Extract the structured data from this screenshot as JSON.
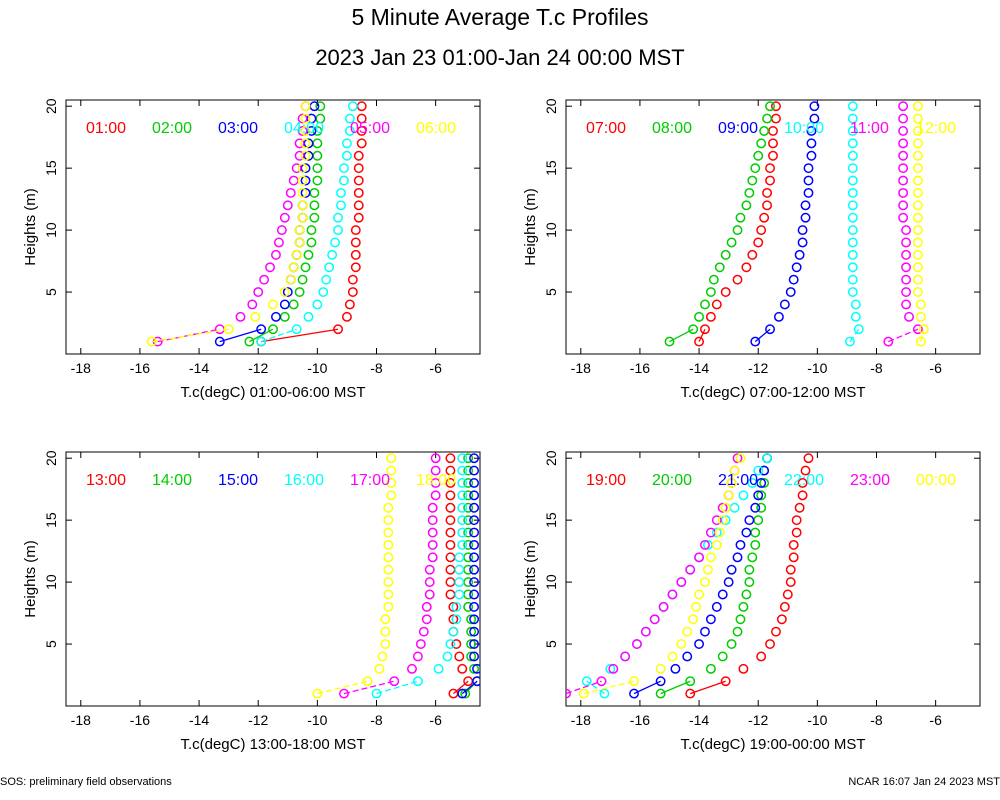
{
  "page": {
    "title": "5 Minute Average T.c Profiles",
    "subtitle": "2023 Jan 23 01:00-Jan 24 00:00 MST",
    "footer_left": "SOS: preliminary field observations",
    "footer_right": "NCAR 16:07 Jan 24 2023 MST"
  },
  "colors": [
    "#ff0000",
    "#00cc00",
    "#0000ff",
    "#00ffff",
    "#ff00ff",
    "#ffff00"
  ],
  "chart_data": [
    {
      "type": "scatter",
      "xlabel": "T.c(degC) 01:00-06:00 MST",
      "ylabel": "Heights (m)",
      "xlim": [
        -18.5,
        -4.5
      ],
      "ylim": [
        0,
        20.5
      ],
      "xticks": [
        -18,
        -16,
        -14,
        -12,
        -10,
        -8,
        -6
      ],
      "yticks": [
        5,
        10,
        15,
        20
      ],
      "grid": false,
      "heights": [
        1,
        2,
        3,
        4,
        5,
        6,
        7,
        8,
        9,
        10,
        11,
        12,
        13,
        14,
        15,
        16,
        17,
        18,
        19,
        20
      ],
      "series": [
        {
          "name": "01:00",
          "values": [
            -11.9,
            -9.3,
            -9.0,
            -8.9,
            -8.8,
            -8.8,
            -8.7,
            -8.7,
            -8.7,
            -8.7,
            -8.6,
            -8.6,
            -8.6,
            -8.6,
            -8.6,
            -8.6,
            -8.5,
            -8.5,
            -8.5,
            -8.5
          ]
        },
        {
          "name": "02:00",
          "values": [
            -12.3,
            -11.5,
            -11.1,
            -10.8,
            -10.6,
            -10.5,
            -10.4,
            -10.3,
            -10.2,
            -10.2,
            -10.1,
            -10.1,
            -10.1,
            -10.0,
            -10.0,
            -10.0,
            -10.0,
            -10.0,
            -9.9,
            -9.9
          ]
        },
        {
          "name": "03:00",
          "values": [
            -13.3,
            -11.9,
            -11.4,
            -11.1,
            -11.0,
            -10.9,
            -10.8,
            -10.7,
            -10.6,
            -10.6,
            -10.5,
            -10.5,
            -10.4,
            -10.4,
            -10.4,
            -10.3,
            -10.3,
            -10.2,
            -10.2,
            -10.1
          ]
        },
        {
          "name": "04:00",
          "values": [
            -11.9,
            -10.7,
            -10.3,
            -10.0,
            -9.8,
            -9.7,
            -9.6,
            -9.5,
            -9.4,
            -9.3,
            -9.3,
            -9.2,
            -9.2,
            -9.1,
            -9.1,
            -9.0,
            -9.0,
            -8.9,
            -8.9,
            -8.8
          ]
        },
        {
          "name": "05:00",
          "values": [
            -15.4,
            -13.3,
            -12.6,
            -12.2,
            -12.0,
            -11.8,
            -11.6,
            -11.4,
            -11.3,
            -11.2,
            -11.1,
            -11.0,
            -10.9,
            -10.8,
            -10.7,
            -10.6,
            -10.6,
            -10.5,
            -10.5,
            -10.4
          ]
        },
        {
          "name": "06:00",
          "values": [
            -15.6,
            -13.0,
            -12.1,
            -11.5,
            -11.1,
            -10.9,
            -10.8,
            -10.7,
            -10.6,
            -10.6,
            -10.5,
            -10.5,
            -10.5,
            -10.5,
            -10.5,
            -10.4,
            -10.4,
            -10.4,
            -10.4,
            -10.4
          ]
        }
      ]
    },
    {
      "type": "scatter",
      "xlabel": "T.c(degC) 07:00-12:00 MST",
      "ylabel": "Heights (m)",
      "xlim": [
        -18.5,
        -4.5
      ],
      "ylim": [
        0,
        20.5
      ],
      "xticks": [
        -18,
        -16,
        -14,
        -12,
        -10,
        -8,
        -6
      ],
      "yticks": [
        5,
        10,
        15,
        20
      ],
      "grid": false,
      "heights": [
        1,
        2,
        3,
        4,
        5,
        6,
        7,
        8,
        9,
        10,
        11,
        12,
        13,
        14,
        15,
        16,
        17,
        18,
        19,
        20
      ],
      "series": [
        {
          "name": "07:00",
          "values": [
            -14.0,
            -13.8,
            -13.6,
            -13.4,
            -13.1,
            -12.7,
            -12.4,
            -12.2,
            -12.0,
            -11.9,
            -11.8,
            -11.7,
            -11.7,
            -11.6,
            -11.6,
            -11.5,
            -11.5,
            -11.5,
            -11.4,
            -11.4
          ]
        },
        {
          "name": "08:00",
          "values": [
            -15.0,
            -14.2,
            -14.0,
            -13.8,
            -13.6,
            -13.5,
            -13.3,
            -13.1,
            -12.9,
            -12.7,
            -12.6,
            -12.4,
            -12.3,
            -12.2,
            -12.1,
            -12.0,
            -11.9,
            -11.8,
            -11.7,
            -11.6
          ]
        },
        {
          "name": "09:00",
          "values": [
            -12.1,
            -11.6,
            -11.3,
            -11.1,
            -10.9,
            -10.8,
            -10.7,
            -10.6,
            -10.5,
            -10.5,
            -10.4,
            -10.4,
            -10.3,
            -10.3,
            -10.3,
            -10.2,
            -10.2,
            -10.2,
            -10.1,
            -10.1
          ]
        },
        {
          "name": "10:00",
          "values": [
            -8.9,
            -8.6,
            -8.7,
            -8.7,
            -8.8,
            -8.8,
            -8.8,
            -8.8,
            -8.8,
            -8.8,
            -8.8,
            -8.8,
            -8.8,
            -8.8,
            -8.8,
            -8.8,
            -8.8,
            -8.8,
            -8.8,
            -8.8
          ]
        },
        {
          "name": "11:00",
          "values": [
            -7.6,
            -6.6,
            -6.9,
            -7.0,
            -7.0,
            -7.0,
            -7.0,
            -7.0,
            -7.0,
            -7.0,
            -7.1,
            -7.1,
            -7.1,
            -7.1,
            -7.1,
            -7.1,
            -7.1,
            -7.1,
            -7.1,
            -7.1
          ]
        },
        {
          "name": "12:00",
          "values": [
            -6.5,
            -6.4,
            -6.5,
            -6.5,
            -6.6,
            -6.6,
            -6.6,
            -6.6,
            -6.6,
            -6.6,
            -6.6,
            -6.6,
            -6.6,
            -6.6,
            -6.6,
            -6.6,
            -6.6,
            -6.6,
            -6.6,
            -6.6
          ]
        }
      ]
    },
    {
      "type": "scatter",
      "xlabel": "T.c(degC) 13:00-18:00 MST",
      "ylabel": "Heights (m)",
      "xlim": [
        -18.5,
        -4.5
      ],
      "ylim": [
        0,
        20.5
      ],
      "xticks": [
        -18,
        -16,
        -14,
        -12,
        -10,
        -8,
        -6
      ],
      "yticks": [
        5,
        10,
        15,
        20
      ],
      "grid": false,
      "heights": [
        1,
        2,
        3,
        4,
        5,
        6,
        7,
        8,
        9,
        10,
        11,
        12,
        13,
        14,
        15,
        16,
        17,
        18,
        19,
        20
      ],
      "series": [
        {
          "name": "13:00",
          "values": [
            -5.4,
            -4.9,
            -5.1,
            -5.2,
            -5.3,
            -5.4,
            -5.4,
            -5.4,
            -5.5,
            -5.5,
            -5.5,
            -5.5,
            -5.5,
            -5.5,
            -5.5,
            -5.5,
            -5.5,
            -5.5,
            -5.5,
            -5.5
          ]
        },
        {
          "name": "14:00",
          "values": [
            -5.0,
            -4.6,
            -4.7,
            -4.8,
            -4.8,
            -4.8,
            -4.8,
            -4.9,
            -4.9,
            -4.9,
            -4.9,
            -4.9,
            -4.9,
            -4.9,
            -4.9,
            -4.9,
            -4.9,
            -4.9,
            -4.9,
            -4.9
          ]
        },
        {
          "name": "15:00",
          "values": [
            -5.1,
            -4.6,
            -4.6,
            -4.7,
            -4.7,
            -4.7,
            -4.7,
            -4.7,
            -4.7,
            -4.7,
            -4.7,
            -4.7,
            -4.7,
            -4.7,
            -4.7,
            -4.7,
            -4.7,
            -4.7,
            -4.7,
            -4.7
          ]
        },
        {
          "name": "16:00",
          "values": [
            -8.0,
            -6.6,
            -5.9,
            -5.6,
            -5.5,
            -5.4,
            -5.3,
            -5.3,
            -5.2,
            -5.2,
            -5.2,
            -5.2,
            -5.1,
            -5.1,
            -5.1,
            -5.1,
            -5.1,
            -5.1,
            -5.1,
            -5.1
          ]
        },
        {
          "name": "17:00",
          "values": [
            -9.1,
            -7.4,
            -6.8,
            -6.6,
            -6.5,
            -6.4,
            -6.3,
            -6.3,
            -6.2,
            -6.2,
            -6.2,
            -6.1,
            -6.1,
            -6.1,
            -6.1,
            -6.1,
            -6.0,
            -6.0,
            -6.0,
            -6.0
          ]
        },
        {
          "name": "18:00",
          "values": [
            -10.0,
            -8.3,
            -7.9,
            -7.8,
            -7.7,
            -7.7,
            -7.7,
            -7.6,
            -7.6,
            -7.6,
            -7.6,
            -7.6,
            -7.6,
            -7.6,
            -7.6,
            -7.6,
            -7.5,
            -7.5,
            -7.5,
            -7.5
          ]
        }
      ]
    },
    {
      "type": "scatter",
      "xlabel": "T.c(degC) 19:00-00:00 MST",
      "ylabel": "Heights (m)",
      "xlim": [
        -18.5,
        -4.5
      ],
      "ylim": [
        0,
        20.5
      ],
      "xticks": [
        -18,
        -16,
        -14,
        -12,
        -10,
        -8,
        -6
      ],
      "yticks": [
        5,
        10,
        15,
        20
      ],
      "grid": false,
      "heights": [
        1,
        2,
        3,
        4,
        5,
        6,
        7,
        8,
        9,
        10,
        11,
        12,
        13,
        14,
        15,
        16,
        17,
        18,
        19,
        20
      ],
      "series": [
        {
          "name": "19:00",
          "values": [
            -14.3,
            -13.1,
            -12.5,
            -11.9,
            -11.6,
            -11.4,
            -11.2,
            -11.1,
            -11.0,
            -10.9,
            -10.9,
            -10.8,
            -10.8,
            -10.7,
            -10.7,
            -10.6,
            -10.5,
            -10.5,
            -10.4,
            -10.3
          ]
        },
        {
          "name": "20:00",
          "values": [
            -15.3,
            -14.3,
            -13.6,
            -13.2,
            -12.9,
            -12.7,
            -12.6,
            -12.5,
            -12.4,
            -12.3,
            -12.3,
            -12.2,
            -12.1,
            -12.1,
            -12.0,
            -11.9,
            -11.9,
            -11.8,
            -11.8,
            -11.7
          ]
        },
        {
          "name": "21:00",
          "values": [
            -16.2,
            -15.3,
            -14.8,
            -14.4,
            -14.0,
            -13.8,
            -13.6,
            -13.4,
            -13.2,
            -13.0,
            -12.9,
            -12.7,
            -12.6,
            -12.4,
            -12.3,
            -12.1,
            -12.0,
            -11.9,
            -11.8,
            -11.7
          ]
        },
        {
          "name": "22:00",
          "values": [
            -17.2,
            -17.8,
            -17.0,
            -16.5,
            -16.1,
            -15.8,
            -15.5,
            -15.2,
            -14.9,
            -14.6,
            -14.3,
            -14.0,
            -13.7,
            -13.4,
            -13.1,
            -12.8,
            -12.5,
            -12.2,
            -12.0,
            -11.7
          ]
        },
        {
          "name": "23:00",
          "values": [
            -18.5,
            -17.3,
            -16.9,
            -16.5,
            -16.1,
            -15.8,
            -15.5,
            -15.2,
            -14.9,
            -14.6,
            -14.3,
            -14.0,
            -13.8,
            -13.6,
            -13.4,
            -13.2,
            -13.0,
            -12.9,
            -12.8,
            -12.7
          ]
        },
        {
          "name": "00:00",
          "values": [
            -17.9,
            -16.2,
            -15.3,
            -14.9,
            -14.6,
            -14.4,
            -14.2,
            -14.1,
            -14.0,
            -13.8,
            -13.7,
            -13.6,
            -13.4,
            -13.3,
            -13.2,
            -13.1,
            -13.0,
            -12.9,
            -12.8,
            -12.6
          ]
        }
      ]
    }
  ]
}
